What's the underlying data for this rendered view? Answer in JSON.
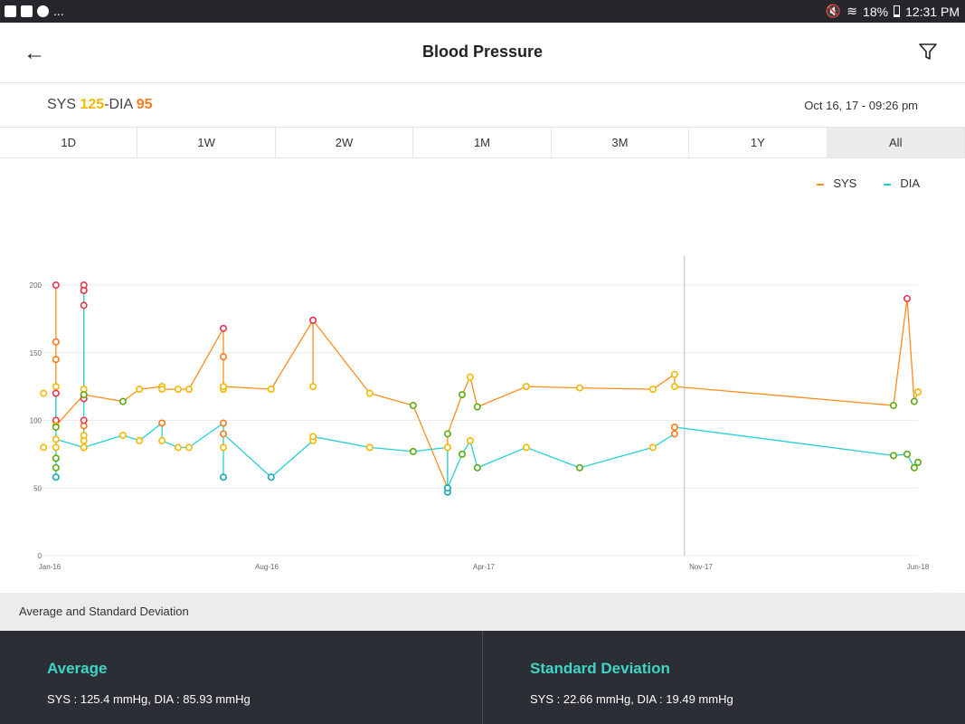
{
  "status_bar": {
    "left_more": "...",
    "battery": "18%",
    "time": "12:31 PM"
  },
  "header": {
    "title": "Blood Pressure",
    "back_icon": "arrow-left-icon",
    "filter_icon": "filter-icon"
  },
  "reading": {
    "sys_label": "SYS ",
    "sys_value": "125",
    "sep": "-DIA ",
    "dia_value": "95",
    "date": "Oct 16, 17 - 09:26 pm"
  },
  "tabs": [
    {
      "label": "1D"
    },
    {
      "label": "1W"
    },
    {
      "label": "2W"
    },
    {
      "label": "1M"
    },
    {
      "label": "3M"
    },
    {
      "label": "1Y"
    },
    {
      "label": "All",
      "selected": true
    }
  ],
  "colors": {
    "sys_line": "#ff8c1a",
    "dia_line": "#26cfd2",
    "red": "#e53950",
    "orange": "#ff7a1a",
    "yellow": "#f5b800",
    "green": "#5aab12",
    "teal": "#1aa8b5"
  },
  "chart_data": {
    "type": "line",
    "legend": [
      {
        "name": "SYS"
      },
      {
        "name": "DIA"
      }
    ],
    "legend_position": "top-right",
    "ylim": [
      0,
      200
    ],
    "yticks": [
      0,
      50,
      100,
      150,
      200
    ],
    "xlim": [
      0,
      28
    ],
    "xticks": [
      {
        "x": 0,
        "label": "Jan-16"
      },
      {
        "x": 7,
        "label": "Aug-16"
      },
      {
        "x": 14,
        "label": "Apr-17"
      },
      {
        "x": 21,
        "label": "Nov-17"
      },
      {
        "x": 28,
        "label": "Jun-18"
      }
    ],
    "cursor_x": 20.47,
    "series": [
      {
        "name": "SYS",
        "points": [
          [
            0.2,
            200,
            "red"
          ],
          [
            0.2,
            158,
            "orange"
          ],
          [
            0.2,
            145,
            "orange"
          ],
          [
            0.2,
            125,
            "yellow"
          ],
          [
            0.2,
            120,
            "red"
          ],
          [
            0.2,
            100,
            "red"
          ],
          [
            0.2,
            96,
            "yellow"
          ],
          [
            1.1,
            119,
            "green"
          ],
          [
            1.1,
            123,
            "yellow"
          ],
          [
            1.1,
            200,
            "red"
          ],
          [
            1.1,
            196,
            "red"
          ],
          [
            1.1,
            185,
            "red"
          ],
          [
            1.1,
            116,
            "red"
          ],
          [
            1.1,
            119,
            "green"
          ],
          [
            2.36,
            114,
            "green"
          ],
          [
            2.89,
            123,
            "yellow"
          ],
          [
            3.62,
            125,
            "yellow"
          ],
          [
            3.62,
            123,
            "yellow"
          ],
          [
            4.14,
            123,
            "yellow"
          ],
          [
            4.49,
            123,
            "yellow"
          ],
          [
            5.6,
            168,
            "red"
          ],
          [
            5.6,
            147,
            "orange"
          ],
          [
            5.6,
            123,
            "yellow"
          ],
          [
            5.6,
            125,
            "yellow"
          ],
          [
            7.14,
            123,
            "yellow"
          ],
          [
            8.49,
            174,
            "red"
          ],
          [
            8.49,
            125,
            "yellow"
          ],
          [
            8.49,
            174,
            "red"
          ],
          [
            10.32,
            120,
            "yellow"
          ],
          [
            11.72,
            111,
            "green"
          ],
          [
            12.83,
            50,
            "teal"
          ],
          [
            12.83,
            90,
            "green"
          ],
          [
            13.3,
            119,
            "green"
          ],
          [
            13.56,
            132,
            "yellow"
          ],
          [
            13.79,
            110,
            "green"
          ],
          [
            15.37,
            125,
            "yellow"
          ],
          [
            17.09,
            124,
            "yellow"
          ],
          [
            19.45,
            123,
            "yellow"
          ],
          [
            20.15,
            134,
            "yellow"
          ],
          [
            20.15,
            125,
            "yellow"
          ],
          [
            27.21,
            111,
            "green"
          ],
          [
            27.65,
            190,
            "red"
          ],
          [
            27.88,
            114,
            "green"
          ],
          [
            28.0,
            121,
            "yellow"
          ]
        ],
        "extra": [
          [
            -0.2,
            120,
            "yellow"
          ]
        ]
      },
      {
        "name": "DIA",
        "points": [
          [
            0.2,
            58,
            "teal"
          ],
          [
            0.2,
            65,
            "green"
          ],
          [
            0.2,
            72,
            "green"
          ],
          [
            0.2,
            80,
            "yellow"
          ],
          [
            0.2,
            95,
            "green"
          ],
          [
            0.2,
            120,
            "red"
          ],
          [
            0.2,
            86,
            "yellow"
          ],
          [
            1.1,
            80,
            "yellow"
          ],
          [
            1.1,
            85,
            "yellow"
          ],
          [
            1.1,
            89,
            "yellow"
          ],
          [
            1.1,
            96,
            "orange"
          ],
          [
            1.1,
            100,
            "red"
          ],
          [
            1.1,
            196,
            "red"
          ],
          [
            1.1,
            80,
            "yellow"
          ],
          [
            2.36,
            89,
            "yellow"
          ],
          [
            2.89,
            85,
            "yellow"
          ],
          [
            3.62,
            98,
            "orange"
          ],
          [
            3.62,
            85,
            "yellow"
          ],
          [
            4.14,
            80,
            "yellow"
          ],
          [
            4.49,
            80,
            "yellow"
          ],
          [
            5.6,
            98,
            "orange"
          ],
          [
            5.6,
            58,
            "teal"
          ],
          [
            5.6,
            80,
            "yellow"
          ],
          [
            5.6,
            90,
            "orange"
          ],
          [
            7.14,
            58,
            "teal"
          ],
          [
            8.49,
            85,
            "yellow"
          ],
          [
            8.49,
            88,
            "yellow"
          ],
          [
            10.32,
            80,
            "yellow"
          ],
          [
            11.72,
            77,
            "green"
          ],
          [
            12.83,
            80,
            "yellow"
          ],
          [
            12.83,
            47,
            "teal"
          ],
          [
            12.83,
            50,
            "teal"
          ],
          [
            13.3,
            75,
            "green"
          ],
          [
            13.56,
            85,
            "yellow"
          ],
          [
            13.79,
            65,
            "green"
          ],
          [
            15.37,
            80,
            "yellow"
          ],
          [
            17.09,
            65,
            "green"
          ],
          [
            19.45,
            80,
            "yellow"
          ],
          [
            20.15,
            90,
            "orange"
          ],
          [
            20.15,
            95,
            "orange"
          ],
          [
            27.21,
            74,
            "green"
          ],
          [
            27.65,
            75,
            "green"
          ],
          [
            27.88,
            65,
            "green"
          ],
          [
            28.0,
            69,
            "green"
          ]
        ],
        "extra": [
          [
            -0.2,
            80,
            "yellow"
          ]
        ]
      }
    ]
  },
  "section_label": "Average and Standard Deviation",
  "average": {
    "title": "Average",
    "text": "SYS : 125.4 mmHg, DIA : 85.93 mmHg"
  },
  "std_dev": {
    "title": "Standard Deviation",
    "text": "SYS : 22.66 mmHg, DIA : 19.49 mmHg"
  }
}
